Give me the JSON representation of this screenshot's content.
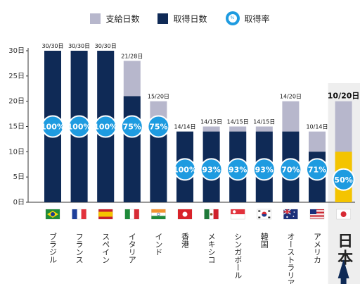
{
  "legend": {
    "paid_label": "支給日数",
    "taken_label": "取得日数",
    "rate_label": "取得率",
    "rate_icon_text": "%"
  },
  "colors": {
    "paid": "#b7b7cc",
    "taken": "#0f2a56",
    "rate_circle": "#1e9be0",
    "japan_taken": "#f4c400",
    "japan_highlight": "#0f2a56",
    "arrow": "#0f2a56"
  },
  "chart_data": {
    "type": "bar",
    "y_unit": "日",
    "ylim": [
      0,
      30
    ],
    "yticks": [
      0,
      5,
      10,
      15,
      20,
      25,
      30
    ],
    "grid": false,
    "categories": [
      "ブラジル",
      "フランス",
      "スペイン",
      "イタリア",
      "インド",
      "香港",
      "メキシコ",
      "シンガポール",
      "韓国",
      "オーストラリア",
      "アメリカ",
      "日本"
    ],
    "series": [
      {
        "name": "支給日数",
        "values": [
          30,
          30,
          30,
          28,
          20,
          14,
          15,
          15,
          15,
          20,
          14,
          20
        ]
      },
      {
        "name": "取得日数",
        "values": [
          30,
          30,
          30,
          21,
          15,
          14,
          14,
          14,
          14,
          14,
          10,
          10
        ]
      },
      {
        "name": "取得率",
        "values": [
          "100%",
          "100%",
          "100%",
          "75%",
          "75%",
          "100%",
          "93%",
          "93%",
          "93%",
          "70%",
          "71%",
          "50%"
        ]
      }
    ],
    "bar_labels": [
      "30/30日",
      "30/30日",
      "30/30日",
      "21/28日",
      "15/20日",
      "14/14日",
      "14/15日",
      "14/15日",
      "14/15日",
      "14/20日",
      "10/14日",
      "10/20日"
    ],
    "flags": [
      "brazil-flag",
      "france-flag",
      "spain-flag",
      "italy-flag",
      "india-flag",
      "hong-kong-flag",
      "mexico-flag",
      "singapore-flag",
      "south-korea-flag",
      "australia-flag",
      "usa-flag",
      "japan-flag"
    ],
    "highlight_category": "日本"
  }
}
